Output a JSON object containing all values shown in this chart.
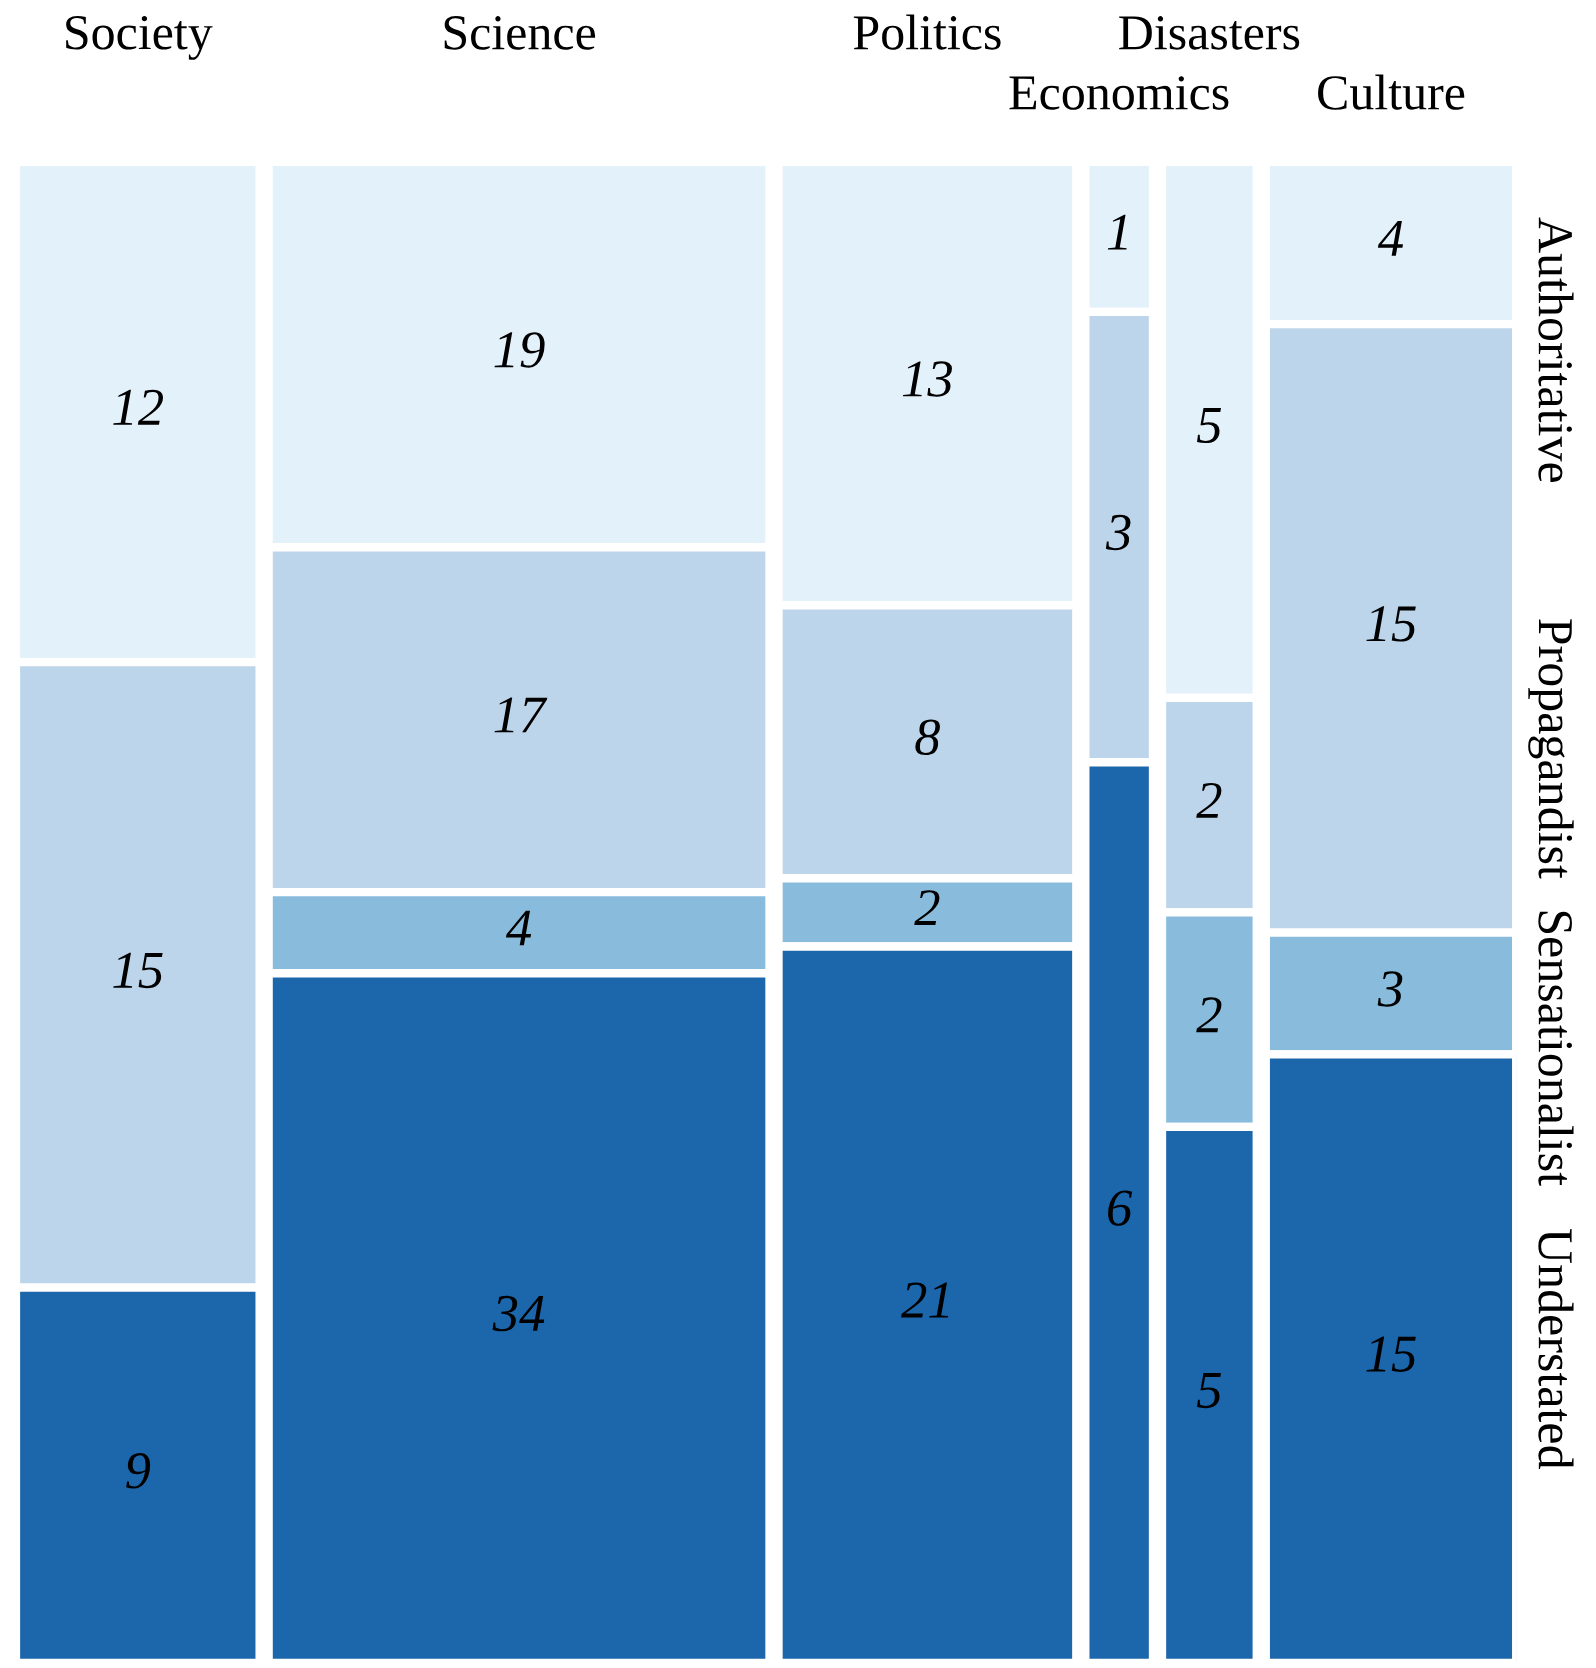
{
  "chart_data": {
    "type": "other",
    "categories": [
      "Society",
      "Science",
      "Politics",
      "Economics",
      "Disasters",
      "Culture"
    ],
    "series": [
      {
        "name": "Authoritative",
        "color": "#e3f1fb",
        "values": [
          12,
          19,
          13,
          1,
          5,
          4
        ]
      },
      {
        "name": "Propagandist",
        "color": "#bcd5ea",
        "values": [
          15,
          17,
          8,
          3,
          2,
          15
        ]
      },
      {
        "name": "Sensationalist",
        "color": "#89bcdc",
        "values": [
          null,
          4,
          2,
          null,
          2,
          3
        ]
      },
      {
        "name": "Understated",
        "color": "#1c66ab",
        "values": [
          9,
          34,
          21,
          6,
          5,
          15
        ]
      }
    ],
    "data_labels": true
  }
}
